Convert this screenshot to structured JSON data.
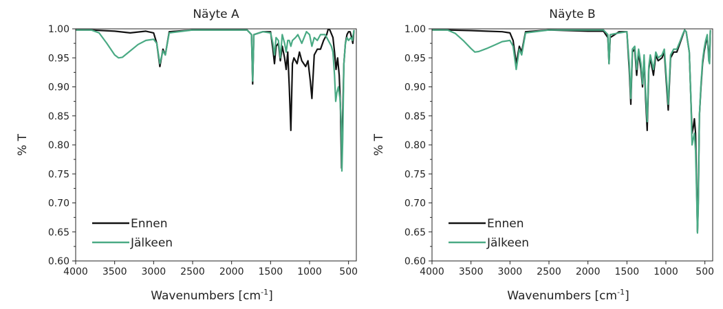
{
  "chart_data": [
    {
      "type": "line",
      "title": "Näyte A",
      "xlabel_main": "Wavenumbers [cm",
      "xlabel_sup": "-1",
      "xlabel_end": "]",
      "ylabel": "% T",
      "xlim": [
        4000,
        400
      ],
      "ylim": [
        0.6,
        1.0
      ],
      "x_ticks": [
        4000,
        3500,
        3000,
        2500,
        2000,
        1500,
        1000,
        500
      ],
      "y_tick_labels": [
        "0.60",
        "0.65",
        "0.70",
        "0.75",
        "0.80",
        "0.85",
        "0.90",
        "0.95",
        "1.00"
      ],
      "legend_position": "bottom-left",
      "grid": false,
      "series": [
        {
          "name": "Ennen",
          "color": "#111111",
          "points": [
            [
              4000,
              0.998
            ],
            [
              3800,
              0.998
            ],
            [
              3500,
              0.996
            ],
            [
              3300,
              0.993
            ],
            [
              3100,
              0.996
            ],
            [
              3000,
              0.993
            ],
            [
              2960,
              0.975
            ],
            [
              2920,
              0.935
            ],
            [
              2880,
              0.965
            ],
            [
              2850,
              0.955
            ],
            [
              2800,
              0.995
            ],
            [
              2500,
              0.998
            ],
            [
              2000,
              0.998
            ],
            [
              1800,
              0.998
            ],
            [
              1745,
              0.99
            ],
            [
              1730,
              0.905
            ],
            [
              1715,
              0.99
            ],
            [
              1600,
              0.995
            ],
            [
              1500,
              0.995
            ],
            [
              1470,
              0.965
            ],
            [
              1450,
              0.94
            ],
            [
              1430,
              0.97
            ],
            [
              1400,
              0.975
            ],
            [
              1375,
              0.945
            ],
            [
              1350,
              0.97
            ],
            [
              1320,
              0.95
            ],
            [
              1300,
              0.93
            ],
            [
              1280,
              0.96
            ],
            [
              1260,
              0.9
            ],
            [
              1240,
              0.825
            ],
            [
              1220,
              0.94
            ],
            [
              1200,
              0.95
            ],
            [
              1160,
              0.94
            ],
            [
              1130,
              0.96
            ],
            [
              1100,
              0.945
            ],
            [
              1050,
              0.935
            ],
            [
              1020,
              0.945
            ],
            [
              990,
              0.91
            ],
            [
              970,
              0.88
            ],
            [
              940,
              0.955
            ],
            [
              900,
              0.965
            ],
            [
              860,
              0.965
            ],
            [
              820,
              0.98
            ],
            [
              780,
              0.99
            ],
            [
              760,
              1.0
            ],
            [
              740,
              0.998
            ],
            [
              700,
              0.985
            ],
            [
              680,
              0.96
            ],
            [
              660,
              0.93
            ],
            [
              640,
              0.95
            ],
            [
              620,
              0.92
            ],
            [
              605,
              0.87
            ],
            [
              590,
              0.76
            ],
            [
              580,
              0.82
            ],
            [
              560,
              0.94
            ],
            [
              540,
              0.975
            ],
            [
              520,
              0.99
            ],
            [
              500,
              0.995
            ],
            [
              480,
              0.995
            ],
            [
              460,
              0.985
            ],
            [
              445,
              0.975
            ],
            [
              430,
              0.998
            ]
          ]
        },
        {
          "name": "Jälkeen",
          "color": "#4aaa84",
          "points": [
            [
              4000,
              0.998
            ],
            [
              3800,
              0.998
            ],
            [
              3700,
              0.993
            ],
            [
              3600,
              0.975
            ],
            [
              3500,
              0.955
            ],
            [
              3450,
              0.95
            ],
            [
              3400,
              0.951
            ],
            [
              3300,
              0.962
            ],
            [
              3200,
              0.973
            ],
            [
              3100,
              0.98
            ],
            [
              3000,
              0.982
            ],
            [
              2960,
              0.975
            ],
            [
              2920,
              0.94
            ],
            [
              2880,
              0.962
            ],
            [
              2850,
              0.955
            ],
            [
              2800,
              0.993
            ],
            [
              2500,
              0.998
            ],
            [
              2000,
              0.998
            ],
            [
              1800,
              0.998
            ],
            [
              1745,
              0.99
            ],
            [
              1730,
              0.91
            ],
            [
              1715,
              0.99
            ],
            [
              1600,
              0.995
            ],
            [
              1500,
              0.993
            ],
            [
              1470,
              0.975
            ],
            [
              1450,
              0.955
            ],
            [
              1430,
              0.985
            ],
            [
              1400,
              0.98
            ],
            [
              1375,
              0.95
            ],
            [
              1350,
              0.99
            ],
            [
              1320,
              0.975
            ],
            [
              1300,
              0.96
            ],
            [
              1280,
              0.98
            ],
            [
              1260,
              0.98
            ],
            [
              1240,
              0.97
            ],
            [
              1220,
              0.98
            ],
            [
              1180,
              0.985
            ],
            [
              1150,
              0.99
            ],
            [
              1100,
              0.975
            ],
            [
              1070,
              0.985
            ],
            [
              1040,
              0.995
            ],
            [
              1000,
              0.99
            ],
            [
              970,
              0.97
            ],
            [
              940,
              0.985
            ],
            [
              900,
              0.98
            ],
            [
              860,
              0.99
            ],
            [
              800,
              0.99
            ],
            [
              760,
              0.98
            ],
            [
              720,
              0.97
            ],
            [
              700,
              0.96
            ],
            [
              680,
              0.92
            ],
            [
              665,
              0.875
            ],
            [
              650,
              0.89
            ],
            [
              630,
              0.9
            ],
            [
              610,
              0.88
            ],
            [
              595,
              0.84
            ],
            [
              585,
              0.755
            ],
            [
              575,
              0.81
            ],
            [
              560,
              0.94
            ],
            [
              540,
              0.975
            ],
            [
              520,
              0.985
            ],
            [
              500,
              0.98
            ],
            [
              470,
              0.985
            ],
            [
              450,
              0.98
            ],
            [
              430,
              0.998
            ]
          ]
        }
      ]
    },
    {
      "type": "line",
      "title": "Näyte B",
      "xlabel_main": "Wavenumbers [cm",
      "xlabel_sup": "-1",
      "xlabel_end": "]",
      "ylabel": "% T",
      "xlim": [
        4000,
        400
      ],
      "ylim": [
        0.6,
        1.0
      ],
      "x_ticks": [
        4000,
        3500,
        3000,
        2500,
        2000,
        1500,
        1000,
        500
      ],
      "y_tick_labels": [
        "0.60",
        "0.65",
        "0.70",
        "0.75",
        "0.80",
        "0.85",
        "0.90",
        "0.95",
        "1.00"
      ],
      "legend_position": "bottom-left",
      "grid": false,
      "series": [
        {
          "name": "Ennen",
          "color": "#111111",
          "points": [
            [
              4000,
              0.998
            ],
            [
              3800,
              0.998
            ],
            [
              3500,
              0.997
            ],
            [
              3300,
              0.996
            ],
            [
              3100,
              0.995
            ],
            [
              3000,
              0.993
            ],
            [
              2960,
              0.98
            ],
            [
              2920,
              0.94
            ],
            [
              2880,
              0.97
            ],
            [
              2850,
              0.96
            ],
            [
              2800,
              0.995
            ],
            [
              2500,
              0.998
            ],
            [
              2000,
              0.996
            ],
            [
              1800,
              0.996
            ],
            [
              1745,
              0.985
            ],
            [
              1730,
              0.94
            ],
            [
              1715,
              0.985
            ],
            [
              1600,
              0.995
            ],
            [
              1500,
              0.995
            ],
            [
              1470,
              0.93
            ],
            [
              1450,
              0.87
            ],
            [
              1430,
              0.96
            ],
            [
              1400,
              0.965
            ],
            [
              1375,
              0.92
            ],
            [
              1350,
              0.96
            ],
            [
              1320,
              0.93
            ],
            [
              1300,
              0.9
            ],
            [
              1280,
              0.95
            ],
            [
              1260,
              0.88
            ],
            [
              1240,
              0.825
            ],
            [
              1220,
              0.93
            ],
            [
              1200,
              0.95
            ],
            [
              1160,
              0.92
            ],
            [
              1130,
              0.955
            ],
            [
              1100,
              0.945
            ],
            [
              1050,
              0.95
            ],
            [
              1020,
              0.96
            ],
            [
              990,
              0.9
            ],
            [
              970,
              0.86
            ],
            [
              940,
              0.95
            ],
            [
              900,
              0.96
            ],
            [
              860,
              0.96
            ],
            [
              820,
              0.975
            ],
            [
              780,
              0.99
            ],
            [
              760,
              0.998
            ],
            [
              740,
              0.995
            ],
            [
              700,
              0.96
            ],
            [
              680,
              0.88
            ],
            [
              665,
              0.82
            ],
            [
              650,
              0.83
            ],
            [
              635,
              0.845
            ],
            [
              620,
              0.82
            ],
            [
              605,
              0.72
            ],
            [
              595,
              0.65
            ],
            [
              585,
              0.7
            ],
            [
              570,
              0.85
            ],
            [
              550,
              0.9
            ],
            [
              530,
              0.94
            ],
            [
              510,
              0.96
            ],
            [
              490,
              0.975
            ],
            [
              470,
              0.985
            ],
            [
              450,
              0.955
            ],
            [
              440,
              0.95
            ],
            [
              430,
              0.998
            ]
          ]
        },
        {
          "name": "Jälkeen",
          "color": "#4aaa84",
          "points": [
            [
              4000,
              0.998
            ],
            [
              3800,
              0.998
            ],
            [
              3700,
              0.992
            ],
            [
              3600,
              0.98
            ],
            [
              3500,
              0.966
            ],
            [
              3450,
              0.96
            ],
            [
              3400,
              0.961
            ],
            [
              3300,
              0.966
            ],
            [
              3200,
              0.972
            ],
            [
              3100,
              0.978
            ],
            [
              3000,
              0.98
            ],
            [
              2960,
              0.97
            ],
            [
              2920,
              0.93
            ],
            [
              2880,
              0.965
            ],
            [
              2850,
              0.955
            ],
            [
              2800,
              0.993
            ],
            [
              2500,
              0.998
            ],
            [
              2000,
              0.998
            ],
            [
              1800,
              0.998
            ],
            [
              1745,
              0.99
            ],
            [
              1730,
              0.94
            ],
            [
              1715,
              0.99
            ],
            [
              1600,
              0.993
            ],
            [
              1500,
              0.995
            ],
            [
              1470,
              0.94
            ],
            [
              1450,
              0.88
            ],
            [
              1430,
              0.965
            ],
            [
              1400,
              0.97
            ],
            [
              1375,
              0.93
            ],
            [
              1350,
              0.965
            ],
            [
              1320,
              0.94
            ],
            [
              1300,
              0.905
            ],
            [
              1280,
              0.955
            ],
            [
              1260,
              0.89
            ],
            [
              1240,
              0.84
            ],
            [
              1220,
              0.935
            ],
            [
              1200,
              0.955
            ],
            [
              1160,
              0.93
            ],
            [
              1130,
              0.96
            ],
            [
              1100,
              0.95
            ],
            [
              1050,
              0.955
            ],
            [
              1020,
              0.965
            ],
            [
              990,
              0.91
            ],
            [
              970,
              0.87
            ],
            [
              940,
              0.955
            ],
            [
              900,
              0.965
            ],
            [
              860,
              0.965
            ],
            [
              820,
              0.978
            ],
            [
              780,
              0.992
            ],
            [
              760,
              0.998
            ],
            [
              740,
              0.995
            ],
            [
              700,
              0.96
            ],
            [
              680,
              0.88
            ],
            [
              665,
              0.8
            ],
            [
              650,
              0.81
            ],
            [
              635,
              0.82
            ],
            [
              620,
              0.79
            ],
            [
              605,
              0.71
            ],
            [
              595,
              0.648
            ],
            [
              585,
              0.69
            ],
            [
              570,
              0.85
            ],
            [
              550,
              0.905
            ],
            [
              530,
              0.945
            ],
            [
              510,
              0.965
            ],
            [
              490,
              0.98
            ],
            [
              470,
              0.99
            ],
            [
              450,
              0.945
            ],
            [
              440,
              0.94
            ],
            [
              430,
              0.998
            ]
          ]
        }
      ]
    }
  ]
}
